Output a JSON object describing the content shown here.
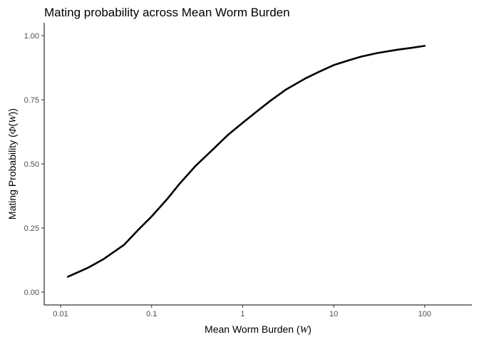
{
  "chart_data": {
    "type": "line",
    "title": "Mating probability across Mean Worm Burden",
    "xlabel": "Mean Worm Burden (",
    "xlabel_symbol": "W",
    "xlabel_suffix": ")",
    "ylabel": "Mating Probability (",
    "ylabel_symbol_a": "Φ",
    "ylabel_paren_open": "(",
    "ylabel_symbol_b": "W",
    "ylabel_suffix": "))",
    "x_scale": "log10",
    "xlim": [
      0.0066,
      330
    ],
    "ylim": [
      -0.05,
      1.05
    ],
    "x_ticks": [
      0.01,
      0.1,
      1,
      10,
      100
    ],
    "x_tick_labels": [
      "0.01",
      "0.1",
      "1",
      "10",
      "100"
    ],
    "y_ticks": [
      0,
      0.25,
      0.5,
      0.75,
      1
    ],
    "y_tick_labels": [
      "0.00",
      "0.25",
      "0.50",
      "0.75",
      "1.00"
    ],
    "grid": false,
    "series": [
      {
        "color": "#000000",
        "x": [
          0.012,
          0.02,
          0.03,
          0.05,
          0.07,
          0.1,
          0.15,
          0.2,
          0.3,
          0.5,
          0.7,
          1,
          1.5,
          2,
          3,
          5,
          7,
          10,
          15,
          20,
          30,
          50,
          70,
          100
        ],
        "y": [
          0.06,
          0.095,
          0.13,
          0.185,
          0.24,
          0.295,
          0.365,
          0.42,
          0.49,
          0.565,
          0.615,
          0.66,
          0.71,
          0.745,
          0.79,
          0.835,
          0.86,
          0.885,
          0.905,
          0.918,
          0.932,
          0.945,
          0.952,
          0.96
        ]
      }
    ]
  }
}
